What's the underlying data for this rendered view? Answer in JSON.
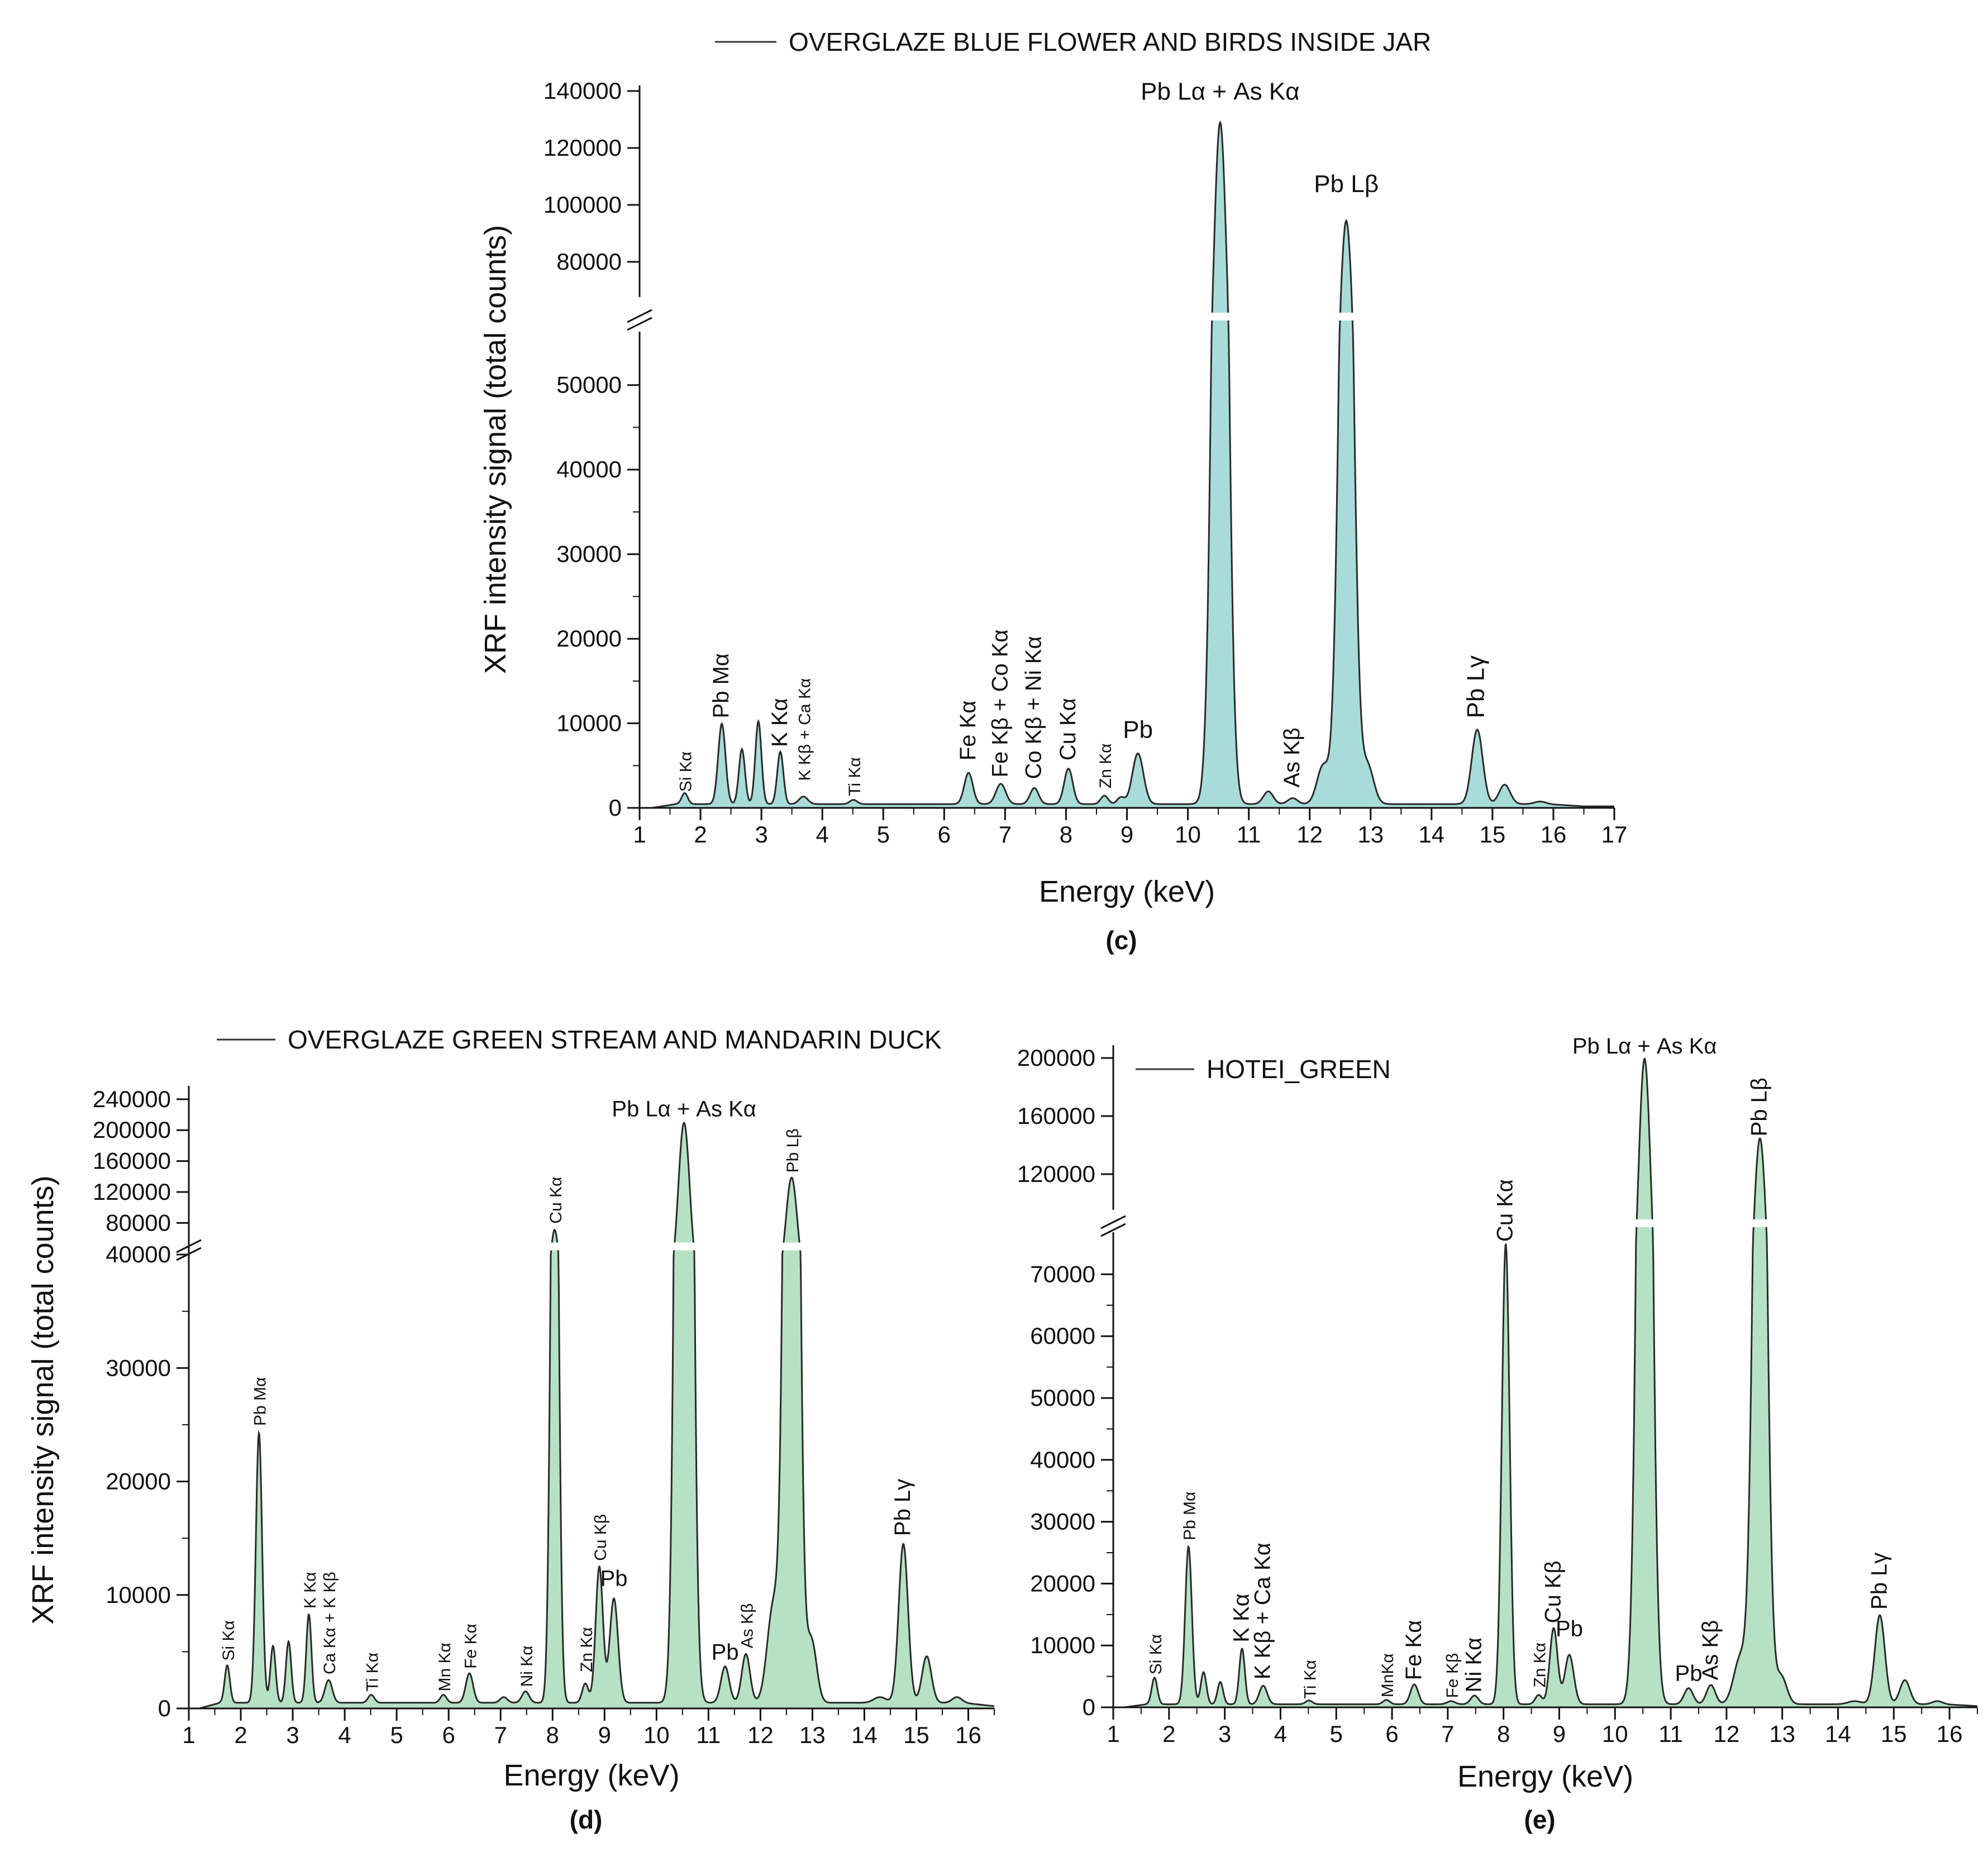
{
  "colors": {
    "panel_c_fill": "#a8dcd9",
    "panel_de_fill": "#b6e2c4",
    "line": "#2a2a2a"
  },
  "chart_data": [
    {
      "id": "c",
      "type": "area",
      "panel_label": "(c)",
      "legend": "OVERGLAZE BLUE FLOWER AND BIRDS INSIDE JAR",
      "xlabel": "Energy (keV)",
      "ylabel": "XRF intensity signal (total counts)",
      "xlim": [
        1,
        17
      ],
      "x_ticks": [
        "1",
        "2",
        "3",
        "4",
        "5",
        "6",
        "7",
        "8",
        "9",
        "10",
        "11",
        "12",
        "13",
        "14",
        "15",
        "16",
        "17"
      ],
      "y_break": true,
      "ylim_lower": [
        0,
        55000
      ],
      "ylim_upper": [
        70000,
        140000
      ],
      "y_ticks_lower": [
        "0",
        "10000",
        "20000",
        "30000",
        "40000",
        "50000"
      ],
      "y_ticks_upper": [
        "80000",
        "100000",
        "120000",
        "140000"
      ],
      "baseline": 450,
      "peaks": [
        {
          "x": 1.74,
          "y": 1300,
          "w": 0.05
        },
        {
          "x": 2.35,
          "y": 9500,
          "w": 0.06
        },
        {
          "x": 2.68,
          "y": 6500,
          "w": 0.05
        },
        {
          "x": 2.95,
          "y": 9800,
          "w": 0.05
        },
        {
          "x": 3.31,
          "y": 6200,
          "w": 0.05
        },
        {
          "x": 3.69,
          "y": 900,
          "w": 0.07
        },
        {
          "x": 4.51,
          "y": 500,
          "w": 0.06
        },
        {
          "x": 6.4,
          "y": 3700,
          "w": 0.07
        },
        {
          "x": 6.93,
          "y": 2400,
          "w": 0.08
        },
        {
          "x": 7.48,
          "y": 1900,
          "w": 0.07
        },
        {
          "x": 8.04,
          "y": 4200,
          "w": 0.07
        },
        {
          "x": 8.63,
          "y": 1000,
          "w": 0.06
        },
        {
          "x": 8.9,
          "y": 800,
          "w": 0.06
        },
        {
          "x": 9.18,
          "y": 6000,
          "w": 0.09
        },
        {
          "x": 10.53,
          "y": 128500,
          "w": 0.11
        },
        {
          "x": 11.32,
          "y": 1500,
          "w": 0.08
        },
        {
          "x": 11.72,
          "y": 700,
          "w": 0.08
        },
        {
          "x": 12.22,
          "y": 4500,
          "w": 0.1
        },
        {
          "x": 12.6,
          "y": 94000,
          "w": 0.11
        },
        {
          "x": 12.95,
          "y": 4500,
          "w": 0.1
        },
        {
          "x": 14.75,
          "y": 8800,
          "w": 0.09
        },
        {
          "x": 15.2,
          "y": 2300,
          "w": 0.09
        },
        {
          "x": 15.78,
          "y": 300,
          "w": 0.09
        }
      ],
      "annotations": [
        {
          "text": "Si Kα",
          "x": 1.74,
          "y": 1900,
          "rot": true,
          "size": "small"
        },
        {
          "text": "Pb Mα",
          "x": 2.35,
          "y": 10600,
          "rot": true,
          "size": "normal"
        },
        {
          "text": "K Kα",
          "x": 3.31,
          "y": 7200,
          "rot": true,
          "size": "normal"
        },
        {
          "text": "K Kβ + Ca Kα",
          "x": 3.69,
          "y": 3200,
          "rot": true,
          "size": "small"
        },
        {
          "text": "Ti Kα",
          "x": 4.51,
          "y": 1400,
          "rot": true,
          "size": "small"
        },
        {
          "text": "Fe Kα",
          "x": 6.4,
          "y": 5600,
          "rot": true,
          "size": "normal"
        },
        {
          "text": "Fe Kβ + Co Kα",
          "x": 6.93,
          "y": 3600,
          "rot": true,
          "size": "normal"
        },
        {
          "text": "Co Kβ + Ni Kα",
          "x": 7.48,
          "y": 3400,
          "rot": true,
          "size": "normal"
        },
        {
          "text": "Cu Kα",
          "x": 8.04,
          "y": 5600,
          "rot": true,
          "size": "normal"
        },
        {
          "text": "Zn Kα",
          "x": 8.63,
          "y": 2300,
          "rot": true,
          "size": "small"
        },
        {
          "text": "Pb",
          "x": 9.18,
          "y": 8300,
          "rot": false,
          "size": "large"
        },
        {
          "text": "Pb Lα + As Kα",
          "x": 10.53,
          "y": 137000,
          "rot": false,
          "size": "large"
        },
        {
          "text": "Pb Lβ",
          "x": 12.6,
          "y": 104500,
          "rot": false,
          "size": "large"
        },
        {
          "text": "As Kβ",
          "x": 11.72,
          "y": 2400,
          "rot": true,
          "size": "normal"
        },
        {
          "text": "Pb Lγ",
          "x": 14.75,
          "y": 10600,
          "rot": true,
          "size": "large"
        }
      ]
    },
    {
      "id": "d",
      "type": "area",
      "panel_label": "(d)",
      "legend": "OVERGLAZE GREEN STREAM AND MANDARIN  DUCK",
      "xlabel": "Energy (keV)",
      "ylabel": "XRF intensity signal (total counts)",
      "xlim": [
        1,
        16.5
      ],
      "x_ticks": [
        "1",
        "2",
        "3",
        "4",
        "5",
        "6",
        "7",
        "8",
        "9",
        "10",
        "11",
        "12",
        "13",
        "14",
        "15",
        "16"
      ],
      "y_break": true,
      "ylim_lower": [
        0,
        40000
      ],
      "ylim_upper": [
        60000,
        250000
      ],
      "y_ticks_lower": [
        "0",
        "10000",
        "20000",
        "30000",
        "40000"
      ],
      "y_ticks_upper": [
        "80000",
        "120000",
        "160000",
        "200000",
        "240000"
      ],
      "baseline": 500,
      "peaks": [
        {
          "x": 1.74,
          "y": 3300,
          "w": 0.05
        },
        {
          "x": 2.35,
          "y": 23800,
          "w": 0.06
        },
        {
          "x": 2.62,
          "y": 5000,
          "w": 0.05
        },
        {
          "x": 2.92,
          "y": 5400,
          "w": 0.05
        },
        {
          "x": 3.31,
          "y": 7800,
          "w": 0.05
        },
        {
          "x": 3.69,
          "y": 2000,
          "w": 0.07
        },
        {
          "x": 4.51,
          "y": 700,
          "w": 0.06
        },
        {
          "x": 5.9,
          "y": 700,
          "w": 0.06
        },
        {
          "x": 6.4,
          "y": 2600,
          "w": 0.07
        },
        {
          "x": 7.06,
          "y": 500,
          "w": 0.07
        },
        {
          "x": 7.48,
          "y": 1000,
          "w": 0.07
        },
        {
          "x": 8.04,
          "y": 70500,
          "w": 0.07
        },
        {
          "x": 8.63,
          "y": 1700,
          "w": 0.06
        },
        {
          "x": 8.9,
          "y": 12000,
          "w": 0.07
        },
        {
          "x": 9.18,
          "y": 9200,
          "w": 0.08
        },
        {
          "x": 10.53,
          "y": 209000,
          "w": 0.11
        },
        {
          "x": 11.32,
          "y": 3200,
          "w": 0.08
        },
        {
          "x": 11.72,
          "y": 4300,
          "w": 0.08
        },
        {
          "x": 12.25,
          "y": 8500,
          "w": 0.12
        },
        {
          "x": 12.6,
          "y": 138000,
          "w": 0.11
        },
        {
          "x": 12.98,
          "y": 5500,
          "w": 0.1
        },
        {
          "x": 14.3,
          "y": 500,
          "w": 0.12
        },
        {
          "x": 14.75,
          "y": 14000,
          "w": 0.09
        },
        {
          "x": 15.2,
          "y": 4100,
          "w": 0.09
        },
        {
          "x": 15.78,
          "y": 500,
          "w": 0.09
        }
      ],
      "annotations": [
        {
          "text": "Si Kα",
          "x": 1.74,
          "y": 4200,
          "rot": true,
          "size": "small"
        },
        {
          "text": "Pb Mα",
          "x": 2.35,
          "y": 24900,
          "rot": true,
          "size": "small"
        },
        {
          "text": "K Kα",
          "x": 3.31,
          "y": 8800,
          "rot": true,
          "size": "small"
        },
        {
          "text": "Ca Kα + K Kβ",
          "x": 3.69,
          "y": 3000,
          "rot": true,
          "size": "small"
        },
        {
          "text": "Ti Kα",
          "x": 4.51,
          "y": 1500,
          "rot": true,
          "size": "small"
        },
        {
          "text": "Mn Kα",
          "x": 5.9,
          "y": 1500,
          "rot": true,
          "size": "small"
        },
        {
          "text": "Fe Kα",
          "x": 6.4,
          "y": 3500,
          "rot": true,
          "size": "small"
        },
        {
          "text": "Ni Kα",
          "x": 7.48,
          "y": 1900,
          "rot": true,
          "size": "small"
        },
        {
          "text": "Cu Kα",
          "x": 8.04,
          "y": 79000,
          "rot": true,
          "size": "small"
        },
        {
          "text": "Zn Kα",
          "x": 8.63,
          "y": 3200,
          "rot": true,
          "size": "small"
        },
        {
          "text": "Cu Kβ",
          "x": 8.9,
          "y": 13000,
          "rot": true,
          "size": "small"
        },
        {
          "text": "Pb",
          "x": 9.18,
          "y": 10800,
          "rot": false,
          "size": "normal"
        },
        {
          "text": "Pb Lα + As Kα",
          "x": 10.53,
          "y": 218000,
          "rot": false,
          "size": "normal"
        },
        {
          "text": "Pb",
          "x": 11.32,
          "y": 4300,
          "rot": false,
          "size": "normal"
        },
        {
          "text": "As Kβ",
          "x": 11.72,
          "y": 5300,
          "rot": true,
          "size": "small"
        },
        {
          "text": "Pb Lβ",
          "x": 12.6,
          "y": 145000,
          "rot": true,
          "size": "small"
        },
        {
          "text": "Pb Lγ",
          "x": 14.75,
          "y": 15200,
          "rot": true,
          "size": "normal"
        }
      ]
    },
    {
      "id": "e",
      "type": "area",
      "panel_label": "(e)",
      "legend": "HOTEI_GREEN",
      "xlabel": "Energy (keV)",
      "ylabel": "",
      "xlim": [
        1,
        16.5
      ],
      "x_ticks": [
        "1",
        "2",
        "3",
        "4",
        "5",
        "6",
        "7",
        "8",
        "9",
        "10",
        "11",
        "12",
        "13",
        "14",
        "15",
        "16"
      ],
      "y_break": true,
      "ylim_lower": [
        0,
        75000
      ],
      "ylim_upper": [
        100000,
        205000
      ],
      "y_ticks_lower": [
        "0",
        "10000",
        "20000",
        "30000",
        "40000",
        "50000",
        "60000",
        "70000"
      ],
      "y_ticks_upper": [
        "120000",
        "160000",
        "200000"
      ],
      "baseline": 500,
      "peaks": [
        {
          "x": 1.74,
          "y": 4300,
          "w": 0.05
        },
        {
          "x": 2.35,
          "y": 25500,
          "w": 0.06
        },
        {
          "x": 2.62,
          "y": 5200,
          "w": 0.05
        },
        {
          "x": 2.92,
          "y": 3600,
          "w": 0.05
        },
        {
          "x": 3.31,
          "y": 9000,
          "w": 0.05
        },
        {
          "x": 3.69,
          "y": 3000,
          "w": 0.07
        },
        {
          "x": 4.51,
          "y": 600,
          "w": 0.06
        },
        {
          "x": 5.9,
          "y": 700,
          "w": 0.06
        },
        {
          "x": 6.4,
          "y": 3200,
          "w": 0.07
        },
        {
          "x": 7.06,
          "y": 500,
          "w": 0.07
        },
        {
          "x": 7.48,
          "y": 1400,
          "w": 0.07
        },
        {
          "x": 8.04,
          "y": 74500,
          "w": 0.07
        },
        {
          "x": 8.63,
          "y": 1500,
          "w": 0.06
        },
        {
          "x": 8.9,
          "y": 12300,
          "w": 0.07
        },
        {
          "x": 9.18,
          "y": 8000,
          "w": 0.08
        },
        {
          "x": 10.53,
          "y": 199000,
          "w": 0.11
        },
        {
          "x": 11.32,
          "y": 2600,
          "w": 0.08
        },
        {
          "x": 11.72,
          "y": 3100,
          "w": 0.08
        },
        {
          "x": 12.25,
          "y": 7500,
          "w": 0.12
        },
        {
          "x": 12.6,
          "y": 144000,
          "w": 0.11
        },
        {
          "x": 12.98,
          "y": 4500,
          "w": 0.1
        },
        {
          "x": 14.3,
          "y": 500,
          "w": 0.12
        },
        {
          "x": 14.75,
          "y": 14400,
          "w": 0.09
        },
        {
          "x": 15.2,
          "y": 3900,
          "w": 0.09
        },
        {
          "x": 15.78,
          "y": 500,
          "w": 0.09
        }
      ],
      "annotations": [
        {
          "text": "Si Kα",
          "x": 1.74,
          "y": 5300,
          "rot": true,
          "size": "small"
        },
        {
          "text": "Pb Mα",
          "x": 2.35,
          "y": 27000,
          "rot": true,
          "size": "small"
        },
        {
          "text": "K Kα",
          "x": 3.31,
          "y": 10500,
          "rot": true,
          "size": "normal"
        },
        {
          "text": "K Kβ + Ca Kα",
          "x": 3.69,
          "y": 4500,
          "rot": true,
          "size": "normal"
        },
        {
          "text": "Ti Kα",
          "x": 4.51,
          "y": 1400,
          "rot": true,
          "size": "small"
        },
        {
          "text": "MnKα",
          "x": 5.9,
          "y": 1600,
          "rot": true,
          "size": "small"
        },
        {
          "text": "Fe Kα",
          "x": 6.4,
          "y": 4400,
          "rot": true,
          "size": "normal"
        },
        {
          "text": "Fe Kβ",
          "x": 7.06,
          "y": 1500,
          "rot": true,
          "size": "small"
        },
        {
          "text": "Ni Kα",
          "x": 7.48,
          "y": 2400,
          "rot": true,
          "size": "normal"
        },
        {
          "text": "Cu Kα",
          "x": 8.04,
          "y": 76000,
          "rot": true,
          "size": "normal"
        },
        {
          "text": "Zn Kα",
          "x": 8.63,
          "y": 3200,
          "rot": true,
          "size": "small"
        },
        {
          "text": "Cu Kβ",
          "x": 8.9,
          "y": 13600,
          "rot": true,
          "size": "normal"
        },
        {
          "text": "Pb",
          "x": 9.18,
          "y": 11500,
          "rot": false,
          "size": "normal"
        },
        {
          "text": "Pb Lα + As Kα",
          "x": 10.53,
          "y": 203000,
          "rot": false,
          "size": "normal"
        },
        {
          "text": "Pb",
          "x": 11.32,
          "y": 4300,
          "rot": false,
          "size": "normal"
        },
        {
          "text": "As Kβ",
          "x": 11.72,
          "y": 4400,
          "rot": true,
          "size": "normal"
        },
        {
          "text": "Pb Lβ",
          "x": 12.6,
          "y": 146000,
          "rot": true,
          "size": "normal"
        },
        {
          "text": "Pb Lγ",
          "x": 14.75,
          "y": 15800,
          "rot": true,
          "size": "normal"
        }
      ]
    }
  ]
}
